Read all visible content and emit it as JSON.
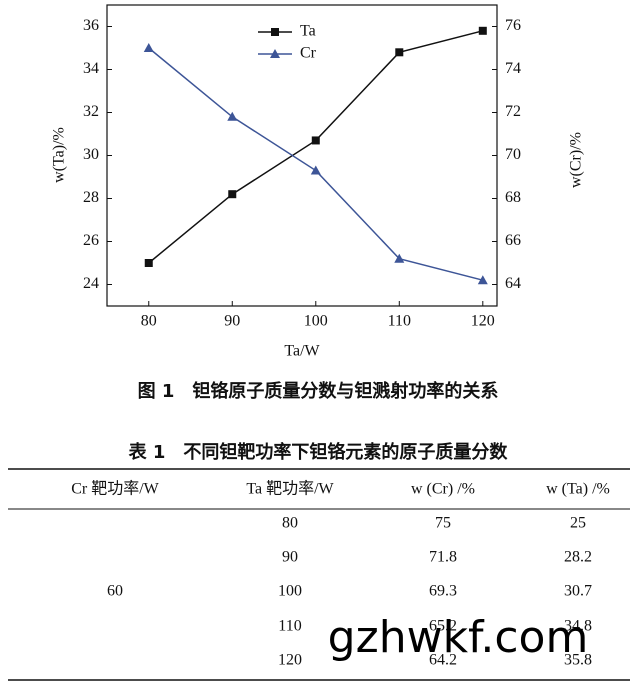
{
  "chart_data": {
    "type": "line",
    "x": [
      80,
      90,
      100,
      110,
      120
    ],
    "xlabel": "Ta/W",
    "ylabel": "w(Ta)/%",
    "y2label": "w(Cr)/%",
    "xlim": [
      75,
      121.7
    ],
    "xticks": [
      80,
      90,
      100,
      110,
      120
    ],
    "ylim": [
      23,
      37
    ],
    "yticks": [
      24,
      26,
      28,
      30,
      32,
      34,
      36
    ],
    "y2lim": [
      63,
      77
    ],
    "y2ticks": [
      64,
      66,
      68,
      70,
      72,
      74,
      76
    ],
    "legend": "upper center",
    "series": [
      {
        "name": "Ta",
        "color": "#111111",
        "marker": "square",
        "values": [
          25,
          28.2,
          30.7,
          34.8,
          35.8
        ]
      },
      {
        "name": "Cr",
        "color": "#3d5597",
        "marker": "triangle",
        "axis": "y2",
        "values": [
          75,
          71.8,
          69.3,
          65.2,
          64.2
        ]
      }
    ]
  },
  "figure_caption": "图 1　钽铬原子质量分数与钽溅射功率的关系",
  "table": {
    "title": "表 1　不同钽靶功率下钽铬元素的原子质量分数",
    "headers": [
      "Cr 靶功率/W",
      "Ta 靶功率/W",
      "w (Cr) /%",
      "w (Ta) /%"
    ],
    "cr_power": 60,
    "rows": [
      [
        80,
        75,
        25
      ],
      [
        90,
        71.8,
        28.2
      ],
      [
        100,
        69.3,
        30.7
      ],
      [
        110,
        65.2,
        34.8
      ],
      [
        120,
        64.2,
        35.8
      ]
    ]
  },
  "watermark": "gzhwkf.com"
}
